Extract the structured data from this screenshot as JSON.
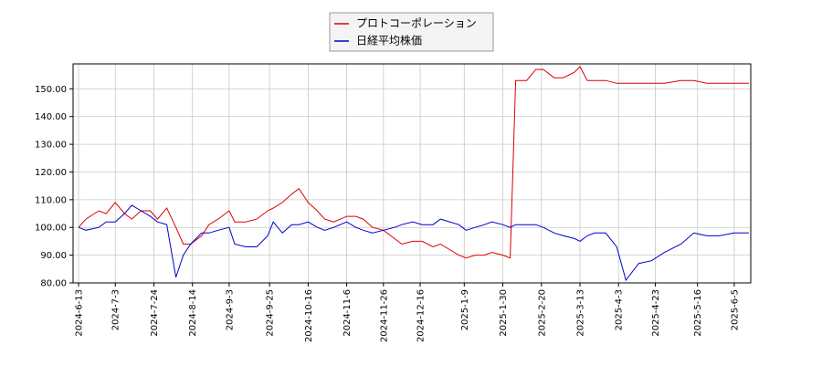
{
  "chart_data": {
    "type": "line",
    "x": [
      "2024-6-13",
      "2024-6-17",
      "2024-6-24",
      "2024-6-28",
      "2024-7-3",
      "2024-7-8",
      "2024-7-12",
      "2024-7-17",
      "2024-7-22",
      "2024-7-26",
      "2024-7-31",
      "2024-8-5",
      "2024-8-9",
      "2024-8-13",
      "2024-8-19",
      "2024-8-23",
      "2024-8-28",
      "2024-9-3",
      "2024-9-6",
      "2024-9-12",
      "2024-9-18",
      "2024-9-24",
      "2024-9-27",
      "2024-10-2",
      "2024-10-7",
      "2024-10-11",
      "2024-10-16",
      "2024-10-21",
      "2024-10-25",
      "2024-10-30",
      "2024-11-6",
      "2024-11-11",
      "2024-11-15",
      "2024-11-20",
      "2024-11-26",
      "2024-12-2",
      "2024-12-6",
      "2024-12-12",
      "2024-12-17",
      "2024-12-23",
      "2024-12-27",
      "2025-1-6",
      "2025-1-10",
      "2025-1-15",
      "2025-1-20",
      "2025-1-24",
      "2025-1-30",
      "2025-2-3",
      "2025-2-6",
      "2025-2-12",
      "2025-2-17",
      "2025-2-21",
      "2025-2-27",
      "2025-3-4",
      "2025-3-10",
      "2025-3-13",
      "2025-3-17",
      "2025-3-21",
      "2025-3-27",
      "2025-4-2",
      "2025-4-7",
      "2025-4-14",
      "2025-4-21",
      "2025-4-28",
      "2025-5-7",
      "2025-5-14",
      "2025-5-21",
      "2025-5-28",
      "2025-6-5",
      "2025-6-13"
    ],
    "series": [
      {
        "name": "プロトコーポレーション",
        "color": "#dd0000",
        "values": [
          100,
          103,
          106,
          105,
          109,
          105,
          103,
          106,
          106,
          103,
          107,
          100,
          94,
          94,
          97,
          101,
          103,
          106,
          102,
          102,
          103,
          106,
          107,
          109,
          112,
          114,
          109,
          106,
          103,
          102,
          104,
          104,
          103,
          100,
          99,
          96,
          94,
          95,
          95,
          93,
          94,
          90,
          89,
          90,
          90,
          91,
          90,
          89,
          153,
          153,
          157,
          157,
          154,
          154,
          156,
          158,
          153,
          153,
          153,
          152,
          152,
          152,
          152,
          152,
          153,
          153,
          152,
          152,
          152,
          152
        ]
      },
      {
        "name": "日経平均株価",
        "color": "#0000cc",
        "values": [
          100,
          99,
          100,
          102,
          102,
          105,
          108,
          106,
          104,
          102,
          101,
          82,
          90,
          94,
          98,
          98,
          99,
          100,
          94,
          93,
          93,
          97,
          102,
          98,
          101,
          101,
          102,
          100,
          99,
          100,
          102,
          100,
          99,
          98,
          99,
          100,
          101,
          102,
          101,
          101,
          103,
          101,
          99,
          100,
          101,
          102,
          101,
          100,
          101,
          101,
          101,
          100,
          98,
          97,
          96,
          95,
          97,
          98,
          98,
          93,
          81,
          87,
          88,
          91,
          94,
          98,
          97,
          97,
          98,
          98
        ]
      }
    ],
    "xlim": [
      "2024-6-10",
      "2025-6-14"
    ],
    "xticks": [
      "2024-6-13",
      "2024-7-3",
      "2024-7-24",
      "2024-8-14",
      "2024-9-3",
      "2024-9-25",
      "2024-10-16",
      "2024-11-6",
      "2024-11-26",
      "2024-12-16",
      "2025-1-9",
      "2025-1-30",
      "2025-2-20",
      "2025-3-13",
      "2025-4-3",
      "2025-4-23",
      "2025-5-16",
      "2025-6-5"
    ],
    "ylim": [
      80,
      159
    ],
    "yticks": [
      {
        "value": 80,
        "label": "80.00"
      },
      {
        "value": 90,
        "label": "90.00"
      },
      {
        "value": 100,
        "label": "100.00"
      },
      {
        "value": 110,
        "label": "110.00"
      },
      {
        "value": 120,
        "label": "120.00"
      },
      {
        "value": 130,
        "label": "130.00"
      },
      {
        "value": 140,
        "label": "140.00"
      },
      {
        "value": 150,
        "label": "150.00"
      }
    ],
    "grid": true
  }
}
